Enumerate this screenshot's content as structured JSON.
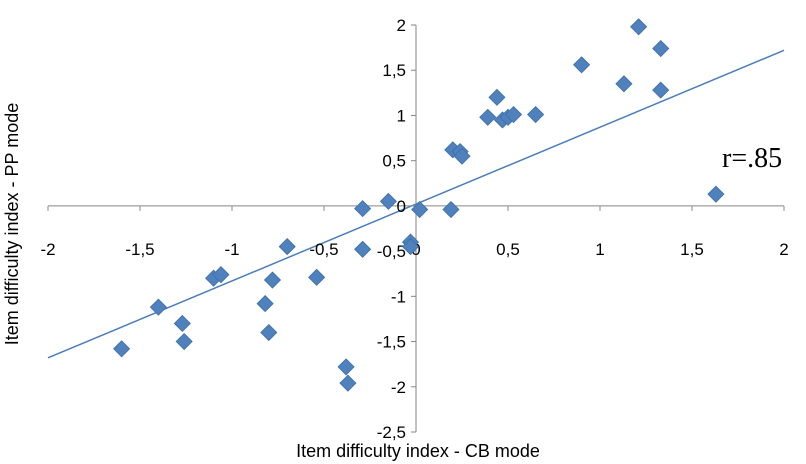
{
  "chart_data": {
    "type": "scatter",
    "xlabel": "Item difficulty index - CB mode",
    "ylabel": "Item difficulty index - PP mode",
    "xlim": [
      -2,
      2
    ],
    "ylim": [
      -2.5,
      2
    ],
    "x_ticks": [
      -2,
      -1.5,
      -1,
      -0.5,
      0,
      0.5,
      1,
      1.5,
      2
    ],
    "x_tick_labels": [
      "-2",
      "-1,5",
      "-1",
      "-0,5",
      "0",
      "0,5",
      "1",
      "1,5",
      "2"
    ],
    "y_ticks": [
      -2.5,
      -2,
      -1.5,
      -1,
      -0.5,
      0,
      0.5,
      1,
      1.5,
      2
    ],
    "y_tick_labels": [
      "-2,5",
      "-2",
      "-1,5",
      "-1",
      "-0,5",
      "0",
      "0,5",
      "1",
      "1,5",
      "2"
    ],
    "annotation": "r=.85",
    "grid": false,
    "marker_color": "#4f81bd",
    "trend_color": "#4a7ebb",
    "trendline": {
      "slope": 0.85,
      "intercept": 0.02
    },
    "series": [
      {
        "points": [
          [
            -1.6,
            -1.58
          ],
          [
            -1.4,
            -1.12
          ],
          [
            -1.27,
            -1.3
          ],
          [
            -1.26,
            -1.5
          ],
          [
            -1.1,
            -0.8
          ],
          [
            -1.06,
            -0.76
          ],
          [
            -0.82,
            -1.08
          ],
          [
            -0.8,
            -1.4
          ],
          [
            -0.78,
            -0.82
          ],
          [
            -0.7,
            -0.45
          ],
          [
            -0.54,
            -0.79
          ],
          [
            -0.38,
            -1.78
          ],
          [
            -0.37,
            -1.96
          ],
          [
            -0.29,
            -0.48
          ],
          [
            -0.29,
            -0.03
          ],
          [
            -0.15,
            0.05
          ],
          [
            -0.03,
            -0.4
          ],
          [
            -0.03,
            -0.45
          ],
          [
            0.02,
            -0.04
          ],
          [
            0.19,
            -0.04
          ],
          [
            0.2,
            0.62
          ],
          [
            0.24,
            0.6
          ],
          [
            0.25,
            0.55
          ],
          [
            0.39,
            0.98
          ],
          [
            0.44,
            1.2
          ],
          [
            0.47,
            0.95
          ],
          [
            0.5,
            0.98
          ],
          [
            0.53,
            1.01
          ],
          [
            0.65,
            1.01
          ],
          [
            0.9,
            1.56
          ],
          [
            1.13,
            1.35
          ],
          [
            1.21,
            1.98
          ],
          [
            1.33,
            1.74
          ],
          [
            1.33,
            1.28
          ],
          [
            1.63,
            0.13
          ]
        ]
      }
    ]
  }
}
